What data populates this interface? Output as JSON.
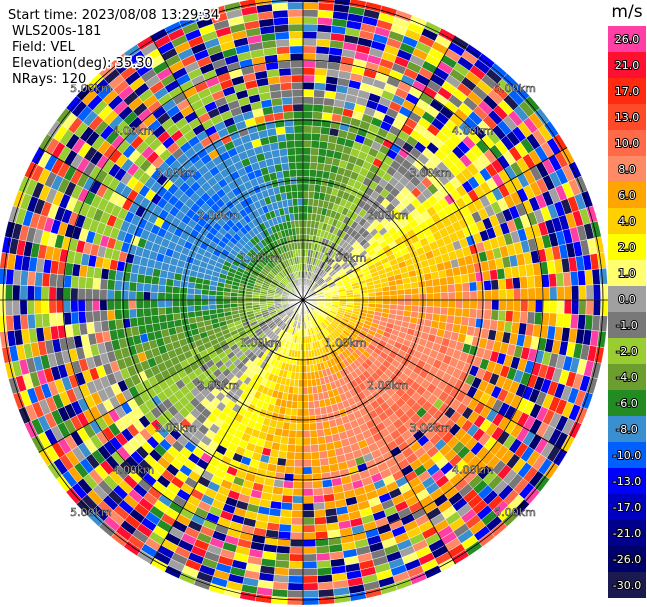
{
  "info": {
    "start_time": "Start time: 2023/08/08 13:29:34",
    "site": "WLS200s-181",
    "field": "Field: VEL",
    "elevation": "Elevation(deg): 35.30",
    "nrays": "NRays: 120"
  },
  "range_labels": [
    "1.00km",
    "2.00km",
    "3.00km",
    "4.00km",
    "5.00km"
  ],
  "colorbar": {
    "unit": "m/s",
    "ticks": [
      {
        "value": 26,
        "label": "26.0"
      },
      {
        "value": 21,
        "label": "21.0"
      },
      {
        "value": 17,
        "label": "17.0"
      },
      {
        "value": 13,
        "label": "13.0"
      },
      {
        "value": 10,
        "label": "10.0"
      },
      {
        "value": 8,
        "label": "8.0"
      },
      {
        "value": 6,
        "label": "6.0"
      },
      {
        "value": 4,
        "label": "4.0"
      },
      {
        "value": 2,
        "label": "2.0"
      },
      {
        "value": 1,
        "label": "1.0"
      },
      {
        "value": 0,
        "label": "0.0"
      },
      {
        "value": -1,
        "label": "-1.0"
      },
      {
        "value": -2,
        "label": "-2.0"
      },
      {
        "value": -4,
        "label": "-4.0"
      },
      {
        "value": -6,
        "label": "-6.0"
      },
      {
        "value": -8,
        "label": "-8.0"
      },
      {
        "value": -10,
        "label": "-10.0"
      },
      {
        "value": -13,
        "label": "-13.0"
      },
      {
        "value": -17,
        "label": "-17.0"
      },
      {
        "value": -21,
        "label": "-21.0"
      },
      {
        "value": -26,
        "label": "-26.0"
      },
      {
        "value": -30,
        "label": "-30.0"
      }
    ],
    "colors": [
      "#ff3fa4",
      "#ff1030",
      "#ff2a10",
      "#ff4a2a",
      "#ff6a48",
      "#ff8a66",
      "#ffa500",
      "#ffd000",
      "#ffff00",
      "#ffff70",
      "#a0a0a0",
      "#787878",
      "#9acd32",
      "#6b9e2f",
      "#228b22",
      "#3a8fd0",
      "#0060ff",
      "#0000ff",
      "#0000c0",
      "#00008c",
      "#00006a",
      "#1a1a50"
    ]
  }
}
